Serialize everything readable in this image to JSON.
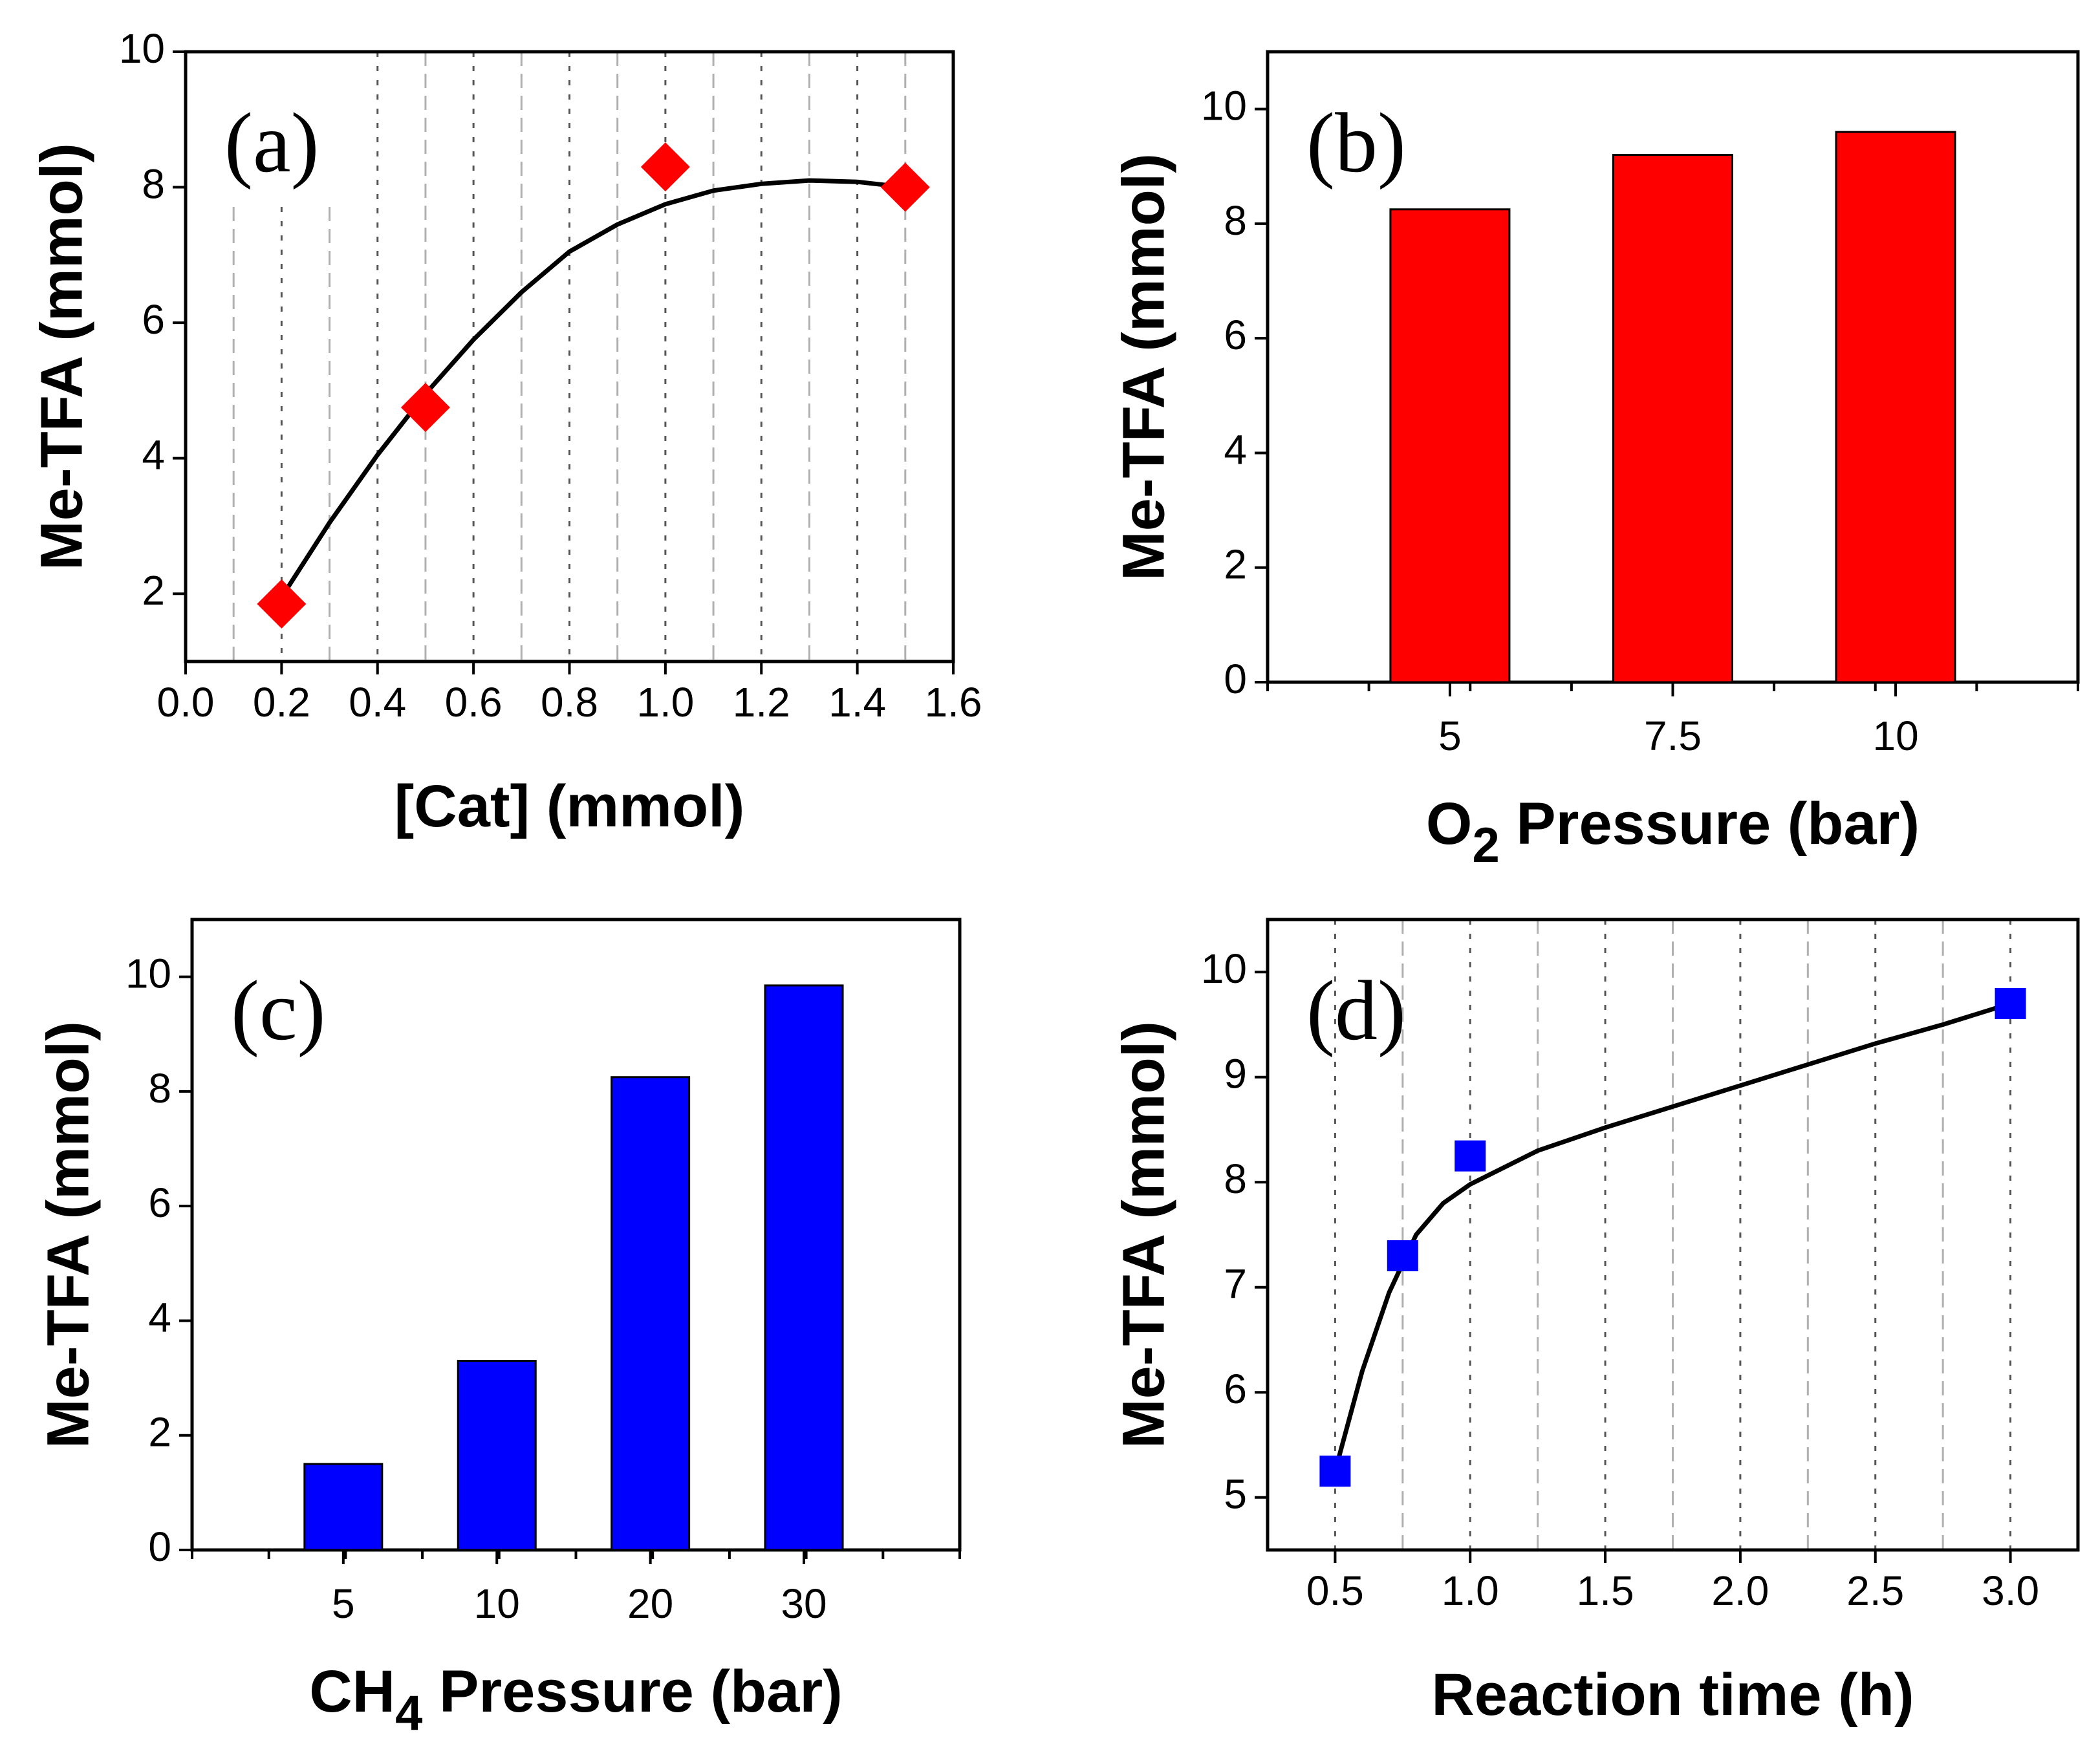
{
  "chart_data": [
    {
      "id": "a",
      "type": "scatter",
      "panel_label": "(a)",
      "xlabel": "[Cat] (mmol)",
      "ylabel": "Me-TFA (mmol)",
      "xlim": [
        0.0,
        1.6
      ],
      "ylim": [
        1.0,
        10.0
      ],
      "xticks": [
        "0.0",
        "0.2",
        "0.4",
        "0.6",
        "0.8",
        "1.0",
        "1.2",
        "1.4",
        "1.6"
      ],
      "yticks": [
        "2",
        "4",
        "6",
        "8",
        "10"
      ],
      "grid": "vertical dashed/dotted lines",
      "marker": "diamond",
      "color": "#ff0000",
      "series": [
        {
          "name": "Me-TFA",
          "x": [
            0.2,
            0.5,
            1.0,
            1.5
          ],
          "y": [
            1.85,
            4.75,
            8.3,
            8.0
          ]
        }
      ],
      "fit_curve": {
        "x": [
          0.2,
          0.3,
          0.4,
          0.5,
          0.6,
          0.7,
          0.8,
          0.9,
          1.0,
          1.1,
          1.2,
          1.3,
          1.4,
          1.5
        ],
        "y": [
          1.95,
          3.05,
          4.05,
          4.95,
          5.75,
          6.45,
          7.05,
          7.45,
          7.75,
          7.95,
          8.05,
          8.1,
          8.08,
          8.0
        ]
      }
    },
    {
      "id": "b",
      "type": "bar",
      "panel_label": "(b)",
      "xlabel_main": "O",
      "xlabel_sub": "2",
      "xlabel_rest": " Pressure (bar)",
      "ylabel": "Me-TFA (mmol)",
      "categories": [
        "5",
        "7.5",
        "10"
      ],
      "values": [
        8.25,
        9.2,
        9.6
      ],
      "ylim": [
        0,
        11
      ],
      "yticks": [
        "0",
        "2",
        "4",
        "6",
        "8",
        "10"
      ],
      "grid": false,
      "color": "#ff0000"
    },
    {
      "id": "c",
      "type": "bar",
      "panel_label": "(c)",
      "xlabel_main": "CH",
      "xlabel_sub": "4",
      "xlabel_rest": " Pressure (bar)",
      "ylabel": "Me-TFA (mmol)",
      "categories": [
        "5",
        "10",
        "20",
        "30"
      ],
      "values": [
        1.5,
        3.3,
        8.25,
        9.85
      ],
      "ylim": [
        0,
        11
      ],
      "yticks": [
        "0",
        "2",
        "4",
        "6",
        "8",
        "10"
      ],
      "grid": false,
      "color": "#0000ff"
    },
    {
      "id": "d",
      "type": "scatter",
      "panel_label": "(d)",
      "xlabel": "Reaction time (h)",
      "ylabel": "Me-TFA (mmol)",
      "xlim": [
        0.25,
        3.25
      ],
      "ylim": [
        4.5,
        10.5
      ],
      "xticks": [
        "0.5",
        "1.0",
        "1.5",
        "2.0",
        "2.5",
        "3.0"
      ],
      "yticks": [
        "5",
        "6",
        "7",
        "8",
        "9",
        "10"
      ],
      "grid": "vertical dashed/dotted lines",
      "marker": "square",
      "color": "#0000ff",
      "series": [
        {
          "name": "Me-TFA",
          "x": [
            0.5,
            0.75,
            1.0,
            3.0
          ],
          "y": [
            5.25,
            7.3,
            8.25,
            9.7
          ]
        }
      ],
      "fit_curve": {
        "x": [
          0.5,
          0.6,
          0.7,
          0.8,
          0.9,
          1.0,
          1.25,
          1.5,
          1.75,
          2.0,
          2.25,
          2.5,
          2.75,
          3.0
        ],
        "y": [
          5.25,
          6.2,
          6.95,
          7.5,
          7.8,
          7.98,
          8.3,
          8.52,
          8.72,
          8.92,
          9.12,
          9.32,
          9.5,
          9.7
        ]
      }
    }
  ]
}
